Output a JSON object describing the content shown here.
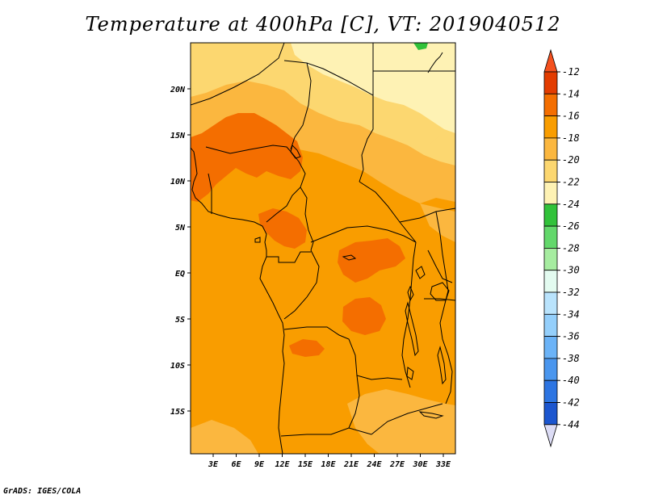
{
  "title": "Temperature at 400hPa [C], VT: 2019040512",
  "credit": "GrADS: IGES/COLA",
  "map": {
    "lat_ticks": [
      "20N",
      "15N",
      "10N",
      "5N",
      "EQ",
      "5S",
      "10S",
      "15S"
    ],
    "lon_ticks": [
      "3E",
      "6E",
      "9E",
      "12E",
      "15E",
      "18E",
      "21E",
      "24E",
      "27E",
      "30E",
      "33E"
    ]
  },
  "colorbar": {
    "labels": [
      "-12",
      "-14",
      "-16",
      "-18",
      "-20",
      "-22",
      "-24",
      "-26",
      "-28",
      "-30",
      "-32",
      "-34",
      "-36",
      "-38",
      "-40",
      "-42",
      "-44"
    ],
    "colors": [
      "#e33c00",
      "#f46e00",
      "#f99d00",
      "#fbb73f",
      "#fcd770",
      "#fef2b4",
      "#31c23a",
      "#63d86b",
      "#a6eca0",
      "#e3fbf0",
      "#b9e3fc",
      "#94cffb",
      "#6bb3f7",
      "#4a96ee",
      "#2d75e2",
      "#1c56cf",
      "#0a248f"
    ],
    "top_arrow_color": "#f4501e",
    "bottom_arrow_color": "#dcdcf5"
  },
  "palette": {
    "background": "#f99d00",
    "warm": "#f46e00",
    "light": "#fbb73f",
    "pale": "#fcd770",
    "palest": "#fef2b4",
    "green": "#31c23a"
  }
}
